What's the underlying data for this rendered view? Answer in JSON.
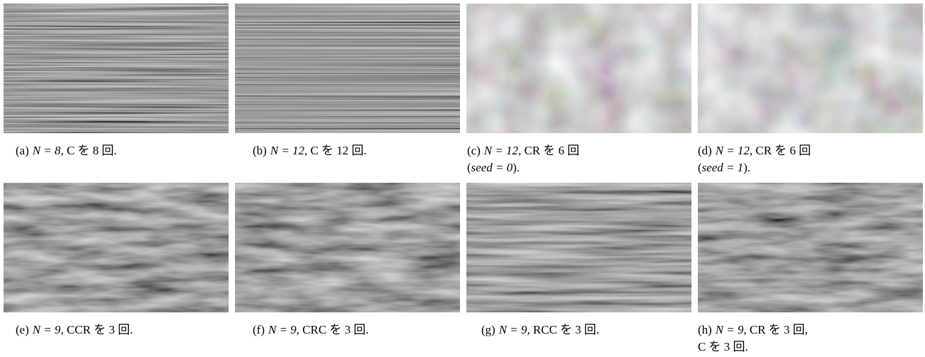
{
  "figures": [
    {
      "label": "(a)",
      "lines": [
        [
          {
            "text": "N = 8",
            "math": true
          },
          {
            "text": ", C を 8 回."
          }
        ]
      ]
    },
    {
      "label": "(b)",
      "lines": [
        [
          {
            "text": "N = 12",
            "math": true
          },
          {
            "text": ", C を 12 回."
          }
        ]
      ]
    },
    {
      "label": "(c)",
      "lines": [
        [
          {
            "text": "N = 12",
            "math": true
          },
          {
            "text": ", CR を 6 回"
          }
        ],
        [
          {
            "text": "("
          },
          {
            "text": "seed = 0",
            "math": true
          },
          {
            "text": ")."
          }
        ]
      ]
    },
    {
      "label": "(d)",
      "lines": [
        [
          {
            "text": "N = 12",
            "math": true
          },
          {
            "text": ", CR を 6 回"
          }
        ],
        [
          {
            "text": "("
          },
          {
            "text": "seed = 1",
            "math": true
          },
          {
            "text": ")."
          }
        ]
      ]
    },
    {
      "label": "(e)",
      "lines": [
        [
          {
            "text": "N = 9",
            "math": true
          },
          {
            "text": ", CCR を 3 回."
          }
        ]
      ]
    },
    {
      "label": "(f)",
      "lines": [
        [
          {
            "text": "N = 9",
            "math": true
          },
          {
            "text": ", CRC を 3 回."
          }
        ]
      ]
    },
    {
      "label": "(g)",
      "lines": [
        [
          {
            "text": "N = 9",
            "math": true
          },
          {
            "text": ", RCC を 3 回."
          }
        ]
      ]
    },
    {
      "label": "(h)",
      "lines": [
        [
          {
            "text": "N = 9",
            "math": true
          },
          {
            "text": ", CR を 3 回,"
          }
        ],
        [
          {
            "text": "C を 3 回."
          }
        ]
      ]
    }
  ]
}
